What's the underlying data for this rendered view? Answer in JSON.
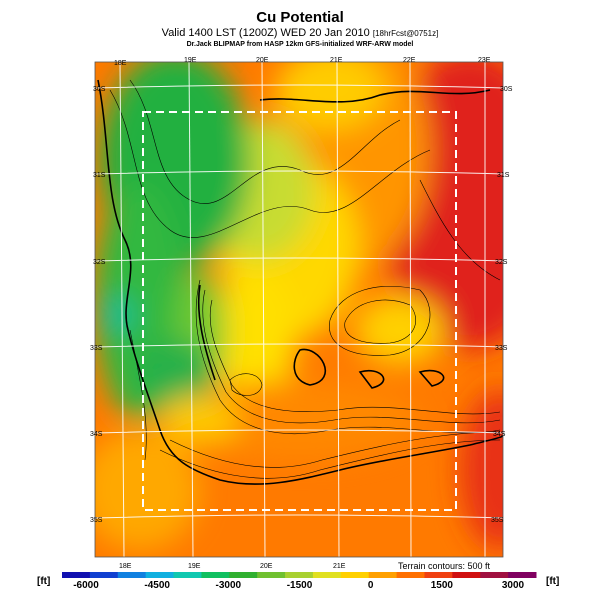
{
  "header": {
    "title": "Cu Potential",
    "subtitle_main": "Valid 1400 LST (1200Z) WED 20 Jan 2010",
    "subtitle_small": "[18hrFcst@0751z]",
    "credit": "Dr.Jack BLIPMAP from HASP 12km GFS-initialized WRF-ARW model"
  },
  "map": {
    "lon_labels_top": [
      "18E",
      "19E",
      "20E",
      "21E",
      "22E",
      "23E"
    ],
    "lon_labels_bottom": [
      "18E",
      "19E",
      "20E",
      "21E"
    ],
    "lat_labels_left": [
      "30S",
      "31S",
      "32S",
      "33S",
      "34S",
      "35S"
    ],
    "lat_labels_right": [
      "30S",
      "31S",
      "32S",
      "33S",
      "34S",
      "35S"
    ],
    "terrain_note": "Terrain contours: 500 ft"
  },
  "colorbar": {
    "unit_left": "[ft]",
    "unit_right": "[ft]",
    "ticks": [
      "-6000",
      "-4500",
      "-3000",
      "-1500",
      "0",
      "1500",
      "3000"
    ],
    "colors": [
      "#1010b0",
      "#1040d0",
      "#1080e0",
      "#10b0e0",
      "#10c8b0",
      "#10c060",
      "#30b030",
      "#70c030",
      "#a8d030",
      "#e0e020",
      "#ffd000",
      "#ffa000",
      "#ff7000",
      "#f04010",
      "#d01010",
      "#a01040",
      "#800060"
    ]
  }
}
